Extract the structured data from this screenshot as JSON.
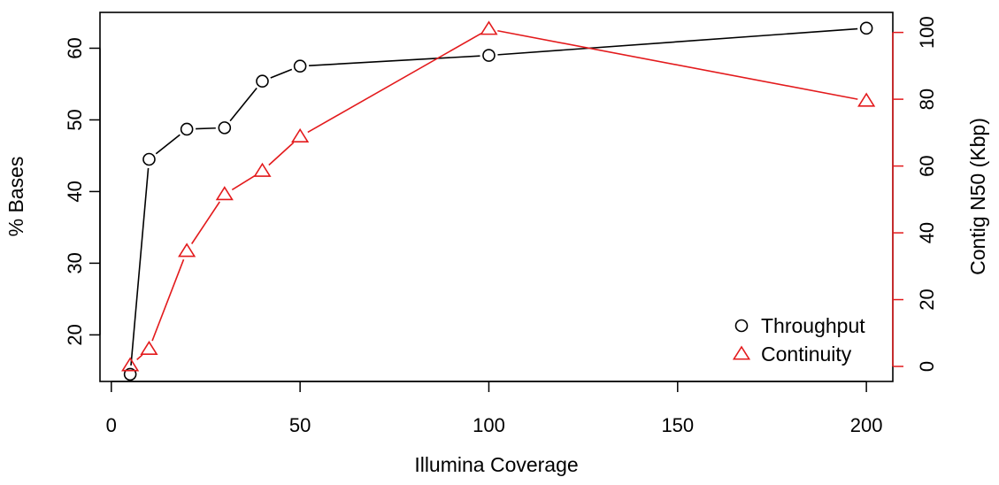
{
  "chart_data": {
    "type": "line",
    "title": "",
    "xlabel": "Illumina Coverage",
    "ylabel": "% Bases",
    "y2label": "Contig N50 (Kbp)",
    "xlim": [
      -3,
      207
    ],
    "ylim": [
      13.5,
      65
    ],
    "y2lim": [
      -4.5,
      106
    ],
    "xticks": [
      0,
      50,
      100,
      150,
      200
    ],
    "yticks": [
      20,
      30,
      40,
      50,
      60
    ],
    "y2ticks": [
      0,
      20,
      40,
      60,
      80,
      100
    ],
    "grid": false,
    "legend_position": "bottom-right",
    "series": [
      {
        "name": "Throughput",
        "axis": "left",
        "color": "#000000",
        "marker": "circle",
        "x": [
          5,
          10,
          20,
          30,
          40,
          50,
          100,
          200
        ],
        "y": [
          14.5,
          44.5,
          48.7,
          48.9,
          55.4,
          57.5,
          59.0,
          62.8
        ]
      },
      {
        "name": "Continuity",
        "axis": "right",
        "color": "#e31a1c",
        "marker": "triangle",
        "x": [
          5,
          10,
          20,
          30,
          40,
          50,
          100,
          200
        ],
        "y": [
          0.3,
          5.2,
          34.5,
          51.5,
          58.5,
          68.8,
          101.0,
          79.5
        ]
      }
    ]
  }
}
